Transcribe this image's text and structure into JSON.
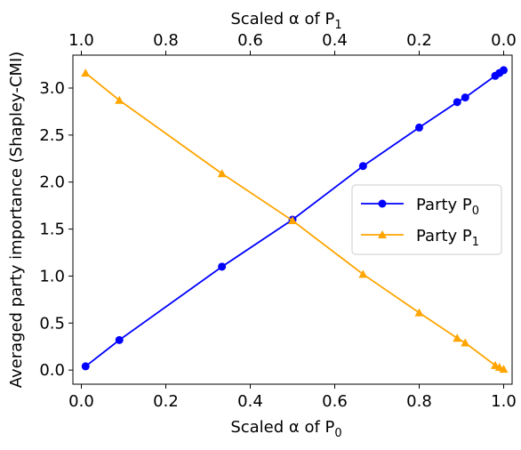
{
  "chart_data": {
    "type": "line",
    "xlabel_bottom": "Scaled α of P",
    "xlabel_bottom_sub": "0",
    "xlabel_top": "Scaled α of P",
    "xlabel_top_sub": "1",
    "ylabel": "Averaged party importance (Shapley-CMI)",
    "xlim": [
      -0.02,
      1.02
    ],
    "ylim": [
      -0.15,
      3.35
    ],
    "x_ticks": [
      0.0,
      0.2,
      0.4,
      0.6,
      0.8,
      1.0
    ],
    "x_tick_labels": [
      "0.0",
      "0.2",
      "0.4",
      "0.6",
      "0.8",
      "1.0"
    ],
    "top_x_ticks": [
      0.0,
      0.2,
      0.4,
      0.6,
      0.8,
      1.0
    ],
    "top_x_tick_labels": [
      "1.0",
      "0.8",
      "0.6",
      "0.4",
      "0.2",
      "0.0"
    ],
    "y_ticks": [
      0.0,
      0.5,
      1.0,
      1.5,
      2.0,
      2.5,
      3.0
    ],
    "y_tick_labels": [
      "0.0",
      "0.5",
      "1.0",
      "1.5",
      "2.0",
      "2.5",
      "3.0"
    ],
    "grid": false,
    "legend_position": "center-right",
    "series": [
      {
        "name": "Party P",
        "name_sub": "0",
        "color": "#0000ff",
        "marker": "circle",
        "x": [
          0.01,
          0.09,
          0.333,
          0.5,
          0.667,
          0.8,
          0.89,
          0.909,
          0.98,
          0.99,
          1.0
        ],
        "y": [
          0.04,
          0.32,
          1.1,
          1.6,
          2.17,
          2.58,
          2.85,
          2.9,
          3.13,
          3.16,
          3.19
        ]
      },
      {
        "name": "Party P",
        "name_sub": "1",
        "color": "#ffa500",
        "marker": "triangle",
        "x": [
          0.01,
          0.09,
          0.333,
          0.5,
          0.667,
          0.8,
          0.89,
          0.909,
          0.98,
          0.99,
          1.0
        ],
        "y": [
          3.16,
          2.87,
          2.09,
          1.59,
          1.02,
          0.61,
          0.34,
          0.29,
          0.05,
          0.03,
          0.01
        ]
      }
    ]
  }
}
